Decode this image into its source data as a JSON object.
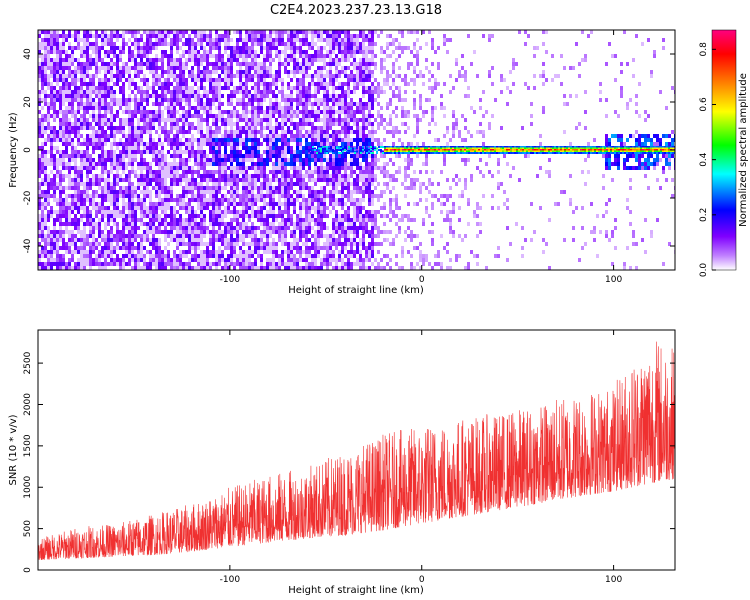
{
  "figure": {
    "title": "C2E4.2023.237.23.13.G18"
  },
  "chart_data": [
    {
      "type": "heatmap",
      "xlabel": "Height of straight line (km)",
      "ylabel": "Frequency (Hz)",
      "xlim": [
        -200,
        132
      ],
      "ylim": [
        -50,
        50
      ],
      "xticks": [
        -100,
        0,
        100
      ],
      "yticks": [
        -40,
        -20,
        0,
        20,
        40
      ],
      "grid": false,
      "colorbar": {
        "label": "Normalized spectral amplitude",
        "range": [
          0,
          0.87
        ],
        "ticks": [
          0.0,
          0.2,
          0.4,
          0.6,
          0.8
        ],
        "colormap": [
          "#ffffff",
          "#7f00ff",
          "#0000ff",
          "#00ffff",
          "#00ff00",
          "#ffff00",
          "#ff7f00",
          "#ff0000",
          "#ff007f"
        ]
      },
      "notes_series": [
        {
          "x_range": [
            -200,
            -20
          ],
          "freq_spread": 50,
          "amplitude": 0.1
        },
        {
          "x_range": [
            -20,
            132
          ],
          "freq_center": 0,
          "amplitude": 0.8
        }
      ]
    },
    {
      "type": "line",
      "xlabel": "Height of straight line (km)",
      "ylabel": "SNR (10 * v/v)",
      "xlim": [
        -200,
        132
      ],
      "ylim": [
        0,
        2900
      ],
      "xticks": [
        -100,
        0,
        100
      ],
      "yticks": [
        0,
        500,
        1000,
        1500,
        2000,
        2500
      ],
      "grid": false,
      "color": "#f03030",
      "envelope": {
        "x": [
          -200,
          -180,
          -160,
          -140,
          -120,
          -100,
          -80,
          -60,
          -40,
          -20,
          0,
          20,
          40,
          60,
          80,
          100,
          120,
          132
        ],
        "baseline": [
          120,
          140,
          160,
          180,
          220,
          280,
          330,
          380,
          420,
          480,
          560,
          640,
          720,
          800,
          880,
          950,
          1050,
          1100
        ],
        "peak": [
          380,
          520,
          560,
          680,
          800,
          1000,
          1150,
          1250,
          1450,
          1650,
          1750,
          1850,
          1900,
          2000,
          2150,
          2250,
          2850,
          2700
        ]
      }
    }
  ]
}
